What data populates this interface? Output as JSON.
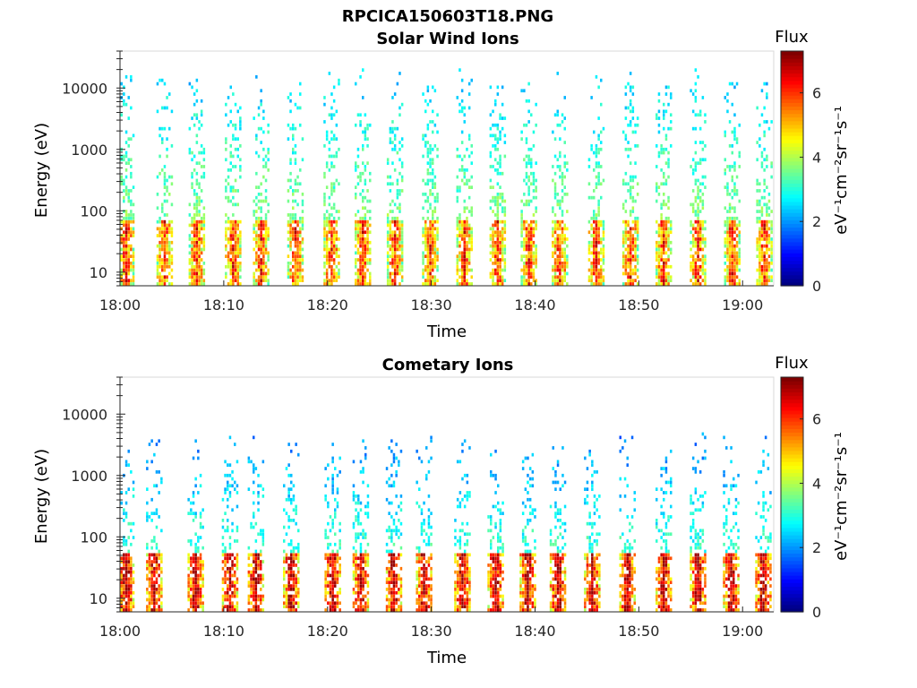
{
  "figure_title": "RPCICA150603T18.PNG",
  "chart_data": [
    {
      "type": "heatmap",
      "title": "Solar Wind Ions",
      "xlabel": "Time",
      "ylabel": "Energy (eV)",
      "xlim": [
        "18:00",
        "19:03"
      ],
      "ylim": [
        6,
        40000
      ],
      "yscale": "log",
      "x_ticks": [
        "18:00",
        "18:10",
        "18:20",
        "18:30",
        "18:40",
        "18:50",
        "19:00"
      ],
      "y_ticks": [
        "10",
        "100",
        "1000",
        "10000"
      ],
      "colorbar": {
        "label": "Flux",
        "unit": "eV⁻¹cm⁻²sr⁻¹s⁻¹",
        "range": [
          0,
          7.3
        ],
        "ticks": [
          "0",
          "2",
          "4",
          "6"
        ]
      },
      "colormap": "jet",
      "burst_minutes": [
        0.5,
        4.2,
        7.3,
        10.8,
        13.5,
        16.8,
        20.3,
        23.3,
        26.4,
        29.8,
        33.1,
        36.3,
        39.3,
        42.3,
        45.8,
        49.1,
        52.3,
        55.6,
        58.9,
        62.0
      ],
      "bursts": {
        "max_energy_eV": 12000,
        "peak_flux_energy_eV": [
          10,
          50
        ],
        "peak_flux": 6,
        "high_energy_flux": 2.5
      },
      "grid": false
    },
    {
      "type": "heatmap",
      "title": "Cometary Ions",
      "xlabel": "Time",
      "ylabel": "Energy (eV)",
      "xlim": [
        "18:00",
        "19:03"
      ],
      "ylim": [
        6,
        40000
      ],
      "yscale": "log",
      "x_ticks": [
        "18:00",
        "18:10",
        "18:20",
        "18:30",
        "18:40",
        "18:50",
        "19:00"
      ],
      "y_ticks": [
        "10",
        "100",
        "1000",
        "10000"
      ],
      "colorbar": {
        "label": "Flux",
        "unit": "eV⁻¹cm⁻²sr⁻¹s⁻¹",
        "range": [
          0,
          7.3
        ],
        "ticks": [
          "0",
          "2",
          "4",
          "6"
        ]
      },
      "colormap": "jet",
      "burst_minutes": [
        0.5,
        3.2,
        7.2,
        10.5,
        13.0,
        16.4,
        20.4,
        23.1,
        26.3,
        29.2,
        32.9,
        36.1,
        39.2,
        42.1,
        45.4,
        48.8,
        52.3,
        55.6,
        58.8,
        61.9
      ],
      "bursts": {
        "max_energy_eV": 3000,
        "peak_flux_energy_eV": [
          8,
          40
        ],
        "peak_flux": 7,
        "high_energy_flux": 2
      },
      "grid": false
    }
  ]
}
